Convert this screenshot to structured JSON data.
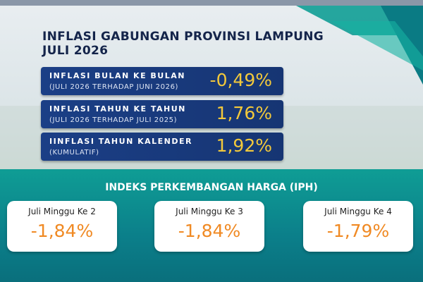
{
  "header": {
    "title_line1": "INFLASI GABUNGAN PROVINSI LAMPUNG",
    "title_line2": "JULI 2026"
  },
  "indicators": [
    {
      "label": "INFLASI BULAN KE BULAN",
      "sublabel": "(JULI 2026 TERHADAP JUNI 2026)",
      "value": "-0,49%"
    },
    {
      "label": "INFLASI TAHUN KE TAHUN",
      "sublabel": "(JULI 2026 TERHADAP JULI 2025)",
      "value": "1,76%"
    },
    {
      "label": "IINFLASI TAHUN KALENDER",
      "sublabel": "(KUMULATIF)",
      "value": "1,92%"
    }
  ],
  "iph": {
    "title": "INDEKS PERKEMBANGAN HARGA (IPH)",
    "weeks": [
      {
        "label": "Juli Minggu Ke 2",
        "value": "-1,84%"
      },
      {
        "label": "Juli Minggu Ke 3",
        "value": "-1,84%"
      },
      {
        "label": "Juli Minggu Ke 4",
        "value": "-1,79%"
      }
    ]
  }
}
